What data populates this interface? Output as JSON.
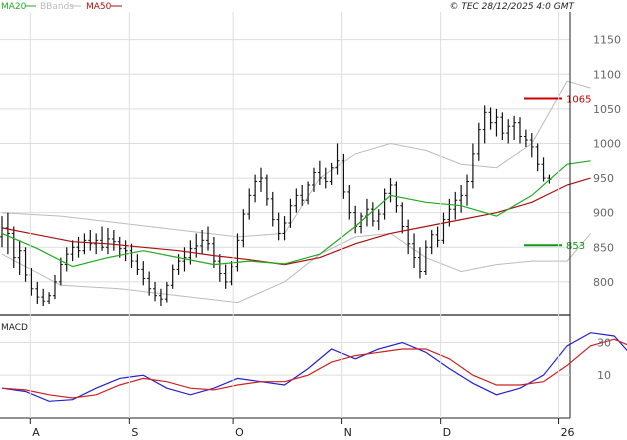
{
  "header": {
    "legend": [
      {
        "label": "MA20",
        "color": "#22aa22"
      },
      {
        "label": "BBands",
        "color": "#bbbbbb"
      },
      {
        "label": "MA50",
        "color": "#aa1111"
      }
    ],
    "copyright": "© TEC 28/12/2025 4:0 GMT"
  },
  "macd_label": "MACD",
  "chart_data": [
    {
      "type": "ohlc",
      "title": "",
      "yticks": [
        800,
        850,
        900,
        950,
        1000,
        1050,
        1100,
        1150
      ],
      "ylim": [
        755,
        1190
      ],
      "xticks": [
        {
          "label": "A",
          "i": 6
        },
        {
          "label": "S",
          "i": 27
        },
        {
          "label": "O",
          "i": 49
        },
        {
          "label": "N",
          "i": 72
        },
        {
          "label": "D",
          "i": 93
        },
        {
          "label": "26",
          "i": 118
        }
      ],
      "n_slots": 120,
      "levels": [
        {
          "value": 1065,
          "label": "1065",
          "color": "#cc0000"
        },
        {
          "value": 853,
          "label": "853",
          "color": "#119911"
        }
      ],
      "colors": {
        "bar": "#111111",
        "ma20": "#22aa22",
        "ma50": "#aa1111",
        "bbands": "#bbbbbb"
      },
      "series": [
        {
          "name": "Price",
          "ohlc": [
            [
              865,
              895,
              850,
              878
            ],
            [
              878,
              900,
              840,
              870
            ],
            [
              870,
              880,
              820,
              835
            ],
            [
              835,
              860,
              810,
              845
            ],
            [
              845,
              850,
              800,
              810
            ],
            [
              810,
              820,
              780,
              790
            ],
            [
              790,
              800,
              768,
              778
            ],
            [
              778,
              790,
              765,
              772
            ],
            [
              772,
              785,
              768,
              780
            ],
            [
              780,
              810,
              775,
              800
            ],
            [
              800,
              835,
              795,
              825
            ],
            [
              825,
              850,
              815,
              840
            ],
            [
              840,
              860,
              830,
              850
            ],
            [
              850,
              865,
              835,
              845
            ],
            [
              845,
              870,
              840,
              860
            ],
            [
              860,
              875,
              845,
              855
            ],
            [
              855,
              870,
              840,
              860
            ],
            [
              860,
              880,
              845,
              850
            ],
            [
              850,
              878,
              840,
              862
            ],
            [
              862,
              875,
              845,
              858
            ],
            [
              858,
              865,
              835,
              848
            ],
            [
              848,
              860,
              830,
              845
            ],
            [
              845,
              855,
              820,
              830
            ],
            [
              830,
              840,
              810,
              818
            ],
            [
              818,
              830,
              795,
              805
            ],
            [
              805,
              815,
              780,
              790
            ],
            [
              790,
              800,
              772,
              780
            ],
            [
              780,
              790,
              765,
              775
            ],
            [
              775,
              800,
              770,
              795
            ],
            [
              795,
              825,
              790,
              818
            ],
            [
              818,
              840,
              810,
              830
            ],
            [
              830,
              850,
              815,
              835
            ],
            [
              835,
              860,
              825,
              848
            ],
            [
              848,
              870,
              835,
              852
            ],
            [
              852,
              875,
              840,
              860
            ],
            [
              860,
              880,
              845,
              855
            ],
            [
              855,
              865,
              820,
              830
            ],
            [
              830,
              840,
              800,
              812
            ],
            [
              812,
              825,
              790,
              800
            ],
            [
              800,
              830,
              795,
              822
            ],
            [
              822,
              870,
              815,
              860
            ],
            [
              860,
              905,
              850,
              898
            ],
            [
              898,
              935,
              890,
              925
            ],
            [
              925,
              955,
              915,
              945
            ],
            [
              945,
              965,
              930,
              950
            ],
            [
              950,
              955,
              910,
              920
            ],
            [
              920,
              930,
              880,
              890
            ],
            [
              890,
              900,
              860,
              870
            ],
            [
              870,
              895,
              860,
              885
            ],
            [
              885,
              920,
              878,
              910
            ],
            [
              910,
              935,
              900,
              925
            ],
            [
              925,
              940,
              910,
              918
            ],
            [
              918,
              945,
              912,
              940
            ],
            [
              940,
              965,
              930,
              958
            ],
            [
              958,
              975,
              940,
              950
            ],
            [
              950,
              965,
              935,
              945
            ],
            [
              945,
              972,
              940,
              965
            ],
            [
              965,
              1000,
              955,
              975
            ],
            [
              975,
              985,
              920,
              930
            ],
            [
              930,
              940,
              890,
              900
            ],
            [
              900,
              910,
              870,
              880
            ],
            [
              880,
              900,
              870,
              895
            ],
            [
              895,
              920,
              880,
              905
            ],
            [
              905,
              915,
              880,
              888
            ],
            [
              888,
              905,
              875,
              898
            ],
            [
              898,
              935,
              890,
              928
            ],
            [
              928,
              950,
              915,
              940
            ],
            [
              940,
              945,
              900,
              910
            ],
            [
              910,
              915,
              870,
              880
            ],
            [
              880,
              890,
              840,
              855
            ],
            [
              855,
              870,
              820,
              835
            ],
            [
              835,
              850,
              805,
              815
            ],
            [
              815,
              860,
              810,
              850
            ],
            [
              850,
              875,
              840,
              868
            ],
            [
              868,
              880,
              850,
              860
            ],
            [
              860,
              900,
              855,
              890
            ],
            [
              890,
              920,
              880,
              905
            ],
            [
              905,
              930,
              890,
              918
            ],
            [
              918,
              940,
              900,
              925
            ],
            [
              925,
              955,
              910,
              945
            ],
            [
              945,
              1000,
              935,
              985
            ],
            [
              985,
              1030,
              975,
              1020
            ],
            [
              1020,
              1055,
              1000,
              1045
            ],
            [
              1045,
              1052,
              1020,
              1030
            ],
            [
              1030,
              1050,
              1010,
              1038
            ],
            [
              1038,
              1045,
              1005,
              1015
            ],
            [
              1015,
              1035,
              1000,
              1025
            ],
            [
              1025,
              1040,
              1005,
              1030
            ],
            [
              1030,
              1038,
              1000,
              1010
            ],
            [
              1010,
              1020,
              995,
              1005
            ],
            [
              1005,
              1015,
              980,
              995
            ],
            [
              995,
              1000,
              960,
              970
            ],
            [
              970,
              980,
              945,
              950
            ],
            [
              950,
              955,
              942,
              948
            ]
          ]
        }
      ],
      "price_slot_start": 0,
      "price_slot_step": 1.248,
      "ma20": [
        [
          0,
          870
        ],
        [
          6,
          848
        ],
        [
          12,
          822
        ],
        [
          18,
          835
        ],
        [
          24,
          845
        ],
        [
          30,
          835
        ],
        [
          36,
          825
        ],
        [
          42,
          830
        ],
        [
          48,
          826
        ],
        [
          54,
          840
        ],
        [
          60,
          880
        ],
        [
          66,
          925
        ],
        [
          72,
          915
        ],
        [
          78,
          910
        ],
        [
          84,
          895
        ],
        [
          90,
          925
        ],
        [
          96,
          970
        ],
        [
          100,
          975
        ]
      ],
      "ma50": [
        [
          0,
          878
        ],
        [
          6,
          868
        ],
        [
          12,
          858
        ],
        [
          18,
          855
        ],
        [
          24,
          850
        ],
        [
          30,
          845
        ],
        [
          36,
          838
        ],
        [
          42,
          832
        ],
        [
          48,
          825
        ],
        [
          54,
          835
        ],
        [
          60,
          855
        ],
        [
          66,
          870
        ],
        [
          72,
          880
        ],
        [
          78,
          890
        ],
        [
          84,
          900
        ],
        [
          90,
          915
        ],
        [
          96,
          940
        ],
        [
          100,
          950
        ]
      ],
      "bb_upper": [
        [
          0,
          900
        ],
        [
          10,
          895
        ],
        [
          20,
          885
        ],
        [
          30,
          875
        ],
        [
          40,
          865
        ],
        [
          48,
          870
        ],
        [
          54,
          950
        ],
        [
          60,
          985
        ],
        [
          66,
          1000
        ],
        [
          72,
          990
        ],
        [
          78,
          970
        ],
        [
          84,
          965
        ],
        [
          90,
          1000
        ],
        [
          96,
          1090
        ],
        [
          100,
          1080
        ]
      ],
      "bb_lower": [
        [
          0,
          840
        ],
        [
          10,
          795
        ],
        [
          20,
          790
        ],
        [
          30,
          780
        ],
        [
          40,
          770
        ],
        [
          48,
          800
        ],
        [
          54,
          840
        ],
        [
          60,
          865
        ],
        [
          66,
          870
        ],
        [
          72,
          835
        ],
        [
          78,
          815
        ],
        [
          84,
          825
        ],
        [
          90,
          830
        ],
        [
          96,
          830
        ],
        [
          100,
          870
        ]
      ]
    },
    {
      "type": "line",
      "title": "",
      "yticks": [
        10,
        30
      ],
      "ylim": [
        -15,
        45
      ],
      "series": [
        {
          "name": "",
          "color": "#2222cc",
          "points": [
            [
              0,
              2
            ],
            [
              4,
              0
            ],
            [
              8,
              -6
            ],
            [
              12,
              -5
            ],
            [
              16,
              2
            ],
            [
              20,
              8
            ],
            [
              24,
              10
            ],
            [
              28,
              2
            ],
            [
              32,
              -2
            ],
            [
              36,
              2
            ],
            [
              40,
              8
            ],
            [
              44,
              6
            ],
            [
              48,
              4
            ],
            [
              52,
              14
            ],
            [
              56,
              26
            ],
            [
              60,
              20
            ],
            [
              64,
              26
            ],
            [
              68,
              30
            ],
            [
              72,
              24
            ],
            [
              76,
              14
            ],
            [
              80,
              5
            ],
            [
              84,
              -2
            ],
            [
              88,
              2
            ],
            [
              92,
              10
            ],
            [
              96,
              28
            ],
            [
              100,
              36
            ],
            [
              104,
              34
            ],
            [
              108,
              18
            ]
          ]
        },
        {
          "name": "",
          "color": "#cc2222",
          "points": [
            [
              0,
              2
            ],
            [
              4,
              1
            ],
            [
              8,
              -2
            ],
            [
              12,
              -4
            ],
            [
              16,
              -2
            ],
            [
              20,
              4
            ],
            [
              24,
              8
            ],
            [
              28,
              6
            ],
            [
              32,
              2
            ],
            [
              36,
              1
            ],
            [
              40,
              4
            ],
            [
              44,
              6
            ],
            [
              48,
              6
            ],
            [
              52,
              10
            ],
            [
              56,
              18
            ],
            [
              60,
              22
            ],
            [
              64,
              24
            ],
            [
              68,
              26
            ],
            [
              72,
              26
            ],
            [
              76,
              20
            ],
            [
              80,
              10
            ],
            [
              84,
              4
            ],
            [
              88,
              4
            ],
            [
              92,
              6
            ],
            [
              96,
              16
            ],
            [
              100,
              28
            ],
            [
              104,
              32
            ],
            [
              108,
              26
            ]
          ]
        }
      ]
    }
  ]
}
